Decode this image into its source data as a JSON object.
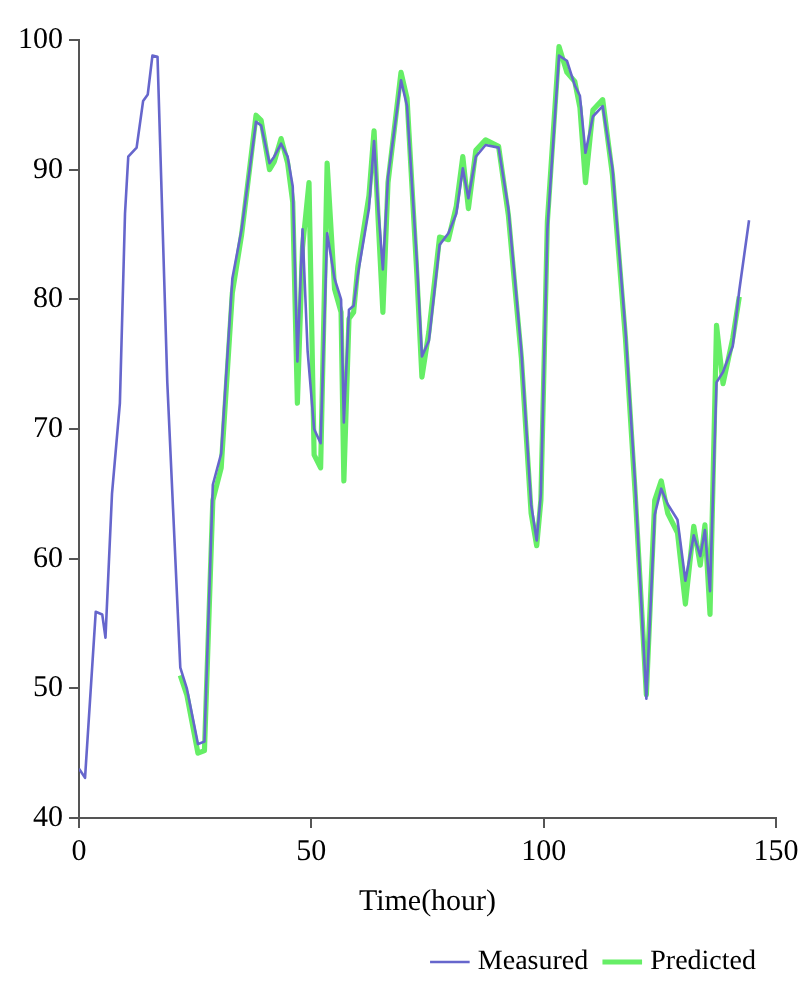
{
  "chart_data": {
    "type": "line",
    "xlabel": "Time(hour)",
    "xlim": [
      0,
      150
    ],
    "xticks": [
      0,
      50,
      100,
      150
    ],
    "ylim": [
      40,
      100
    ],
    "yticks": [
      40,
      50,
      60,
      70,
      80,
      90,
      100
    ],
    "grid": false,
    "legend": "bottom right",
    "marker": "none",
    "line_style": "solid",
    "series": [
      {
        "name": "Measured",
        "color": "#6666cc",
        "x": [
          0,
          1.3,
          3.6,
          5,
          5.7,
          7.1,
          8.8,
          9.9,
          10.6,
          12.4,
          13.8,
          14.8,
          15.8,
          16.9,
          19,
          21.8,
          23.2,
          25.6,
          27,
          28.8,
          30.6,
          33,
          35,
          38.1,
          39.2,
          41,
          42,
          43.5,
          44.9,
          46,
          47,
          48.1,
          49.2,
          50.6,
          52,
          53.4,
          55,
          56.4,
          57,
          58.1,
          59.1,
          60,
          62.4,
          63.5,
          64.4,
          65.4,
          66.5,
          69.3,
          70.6,
          72.7,
          73.8,
          75.3,
          77.6,
          79.5,
          81.2,
          82.6,
          83.8,
          85.4,
          87.5,
          90.3,
          92.4,
          95.2,
          97.3,
          98.5,
          99.4,
          100.8,
          103.3,
          105,
          106.7,
          107.8,
          109,
          110.6,
          112.7,
          114.8,
          117.6,
          119.7,
          122.1,
          123.9,
          125.3,
          126.7,
          128.8,
          130.5,
          132.3,
          133.7,
          134.7,
          135.8,
          137.2,
          138.6,
          140.7,
          142.1,
          144.2
        ],
        "values": [
          43.8,
          43.1,
          55.9,
          55.7,
          53.9,
          65,
          72,
          86.6,
          91,
          91.7,
          95.3,
          95.8,
          98.8,
          98.7,
          73.6,
          51.6,
          50,
          45.7,
          45.9,
          65.7,
          68.1,
          81.6,
          85.4,
          93.7,
          93.4,
          90.5,
          91,
          92,
          91,
          88.7,
          75.2,
          85.4,
          76,
          70,
          68.9,
          85.1,
          81.6,
          80,
          70.5,
          79.2,
          79.5,
          81.9,
          87,
          92.2,
          87,
          82.3,
          89.4,
          96.9,
          94.9,
          83,
          75.6,
          76.8,
          84.2,
          85.1,
          86.6,
          90.1,
          87.8,
          91,
          91.9,
          91.7,
          87,
          76,
          64.2,
          61.4,
          65,
          85.4,
          98.8,
          98.4,
          96.5,
          95.7,
          91.3,
          94.1,
          94.9,
          90.1,
          77.6,
          65.7,
          49.2,
          63.4,
          65.4,
          64.2,
          63,
          58.3,
          61.8,
          60.2,
          62.2,
          57.5,
          73.6,
          74.4,
          76.4,
          80.7,
          86.1
        ]
      },
      {
        "name": "Predicted",
        "color": "#66ee66",
        "x": [
          21.8,
          23.2,
          25.6,
          27,
          28.8,
          30.6,
          33,
          35,
          38.1,
          39.2,
          41,
          42,
          43.5,
          44.9,
          46,
          47,
          48.1,
          49.5,
          50.6,
          52,
          53.4,
          55,
          56.4,
          57,
          58.1,
          59.1,
          60,
          62.4,
          63.5,
          64.4,
          65.4,
          66.5,
          69.3,
          70.6,
          72.7,
          73.8,
          75.3,
          77.6,
          79.5,
          81.2,
          82.6,
          83.8,
          85.4,
          87.5,
          90.3,
          92.4,
          95.2,
          97.3,
          98.5,
          99.4,
          100.8,
          103.3,
          105,
          106.7,
          107.8,
          109,
          110.6,
          112.7,
          114.8,
          117.6,
          119.7,
          122.1,
          123.9,
          125.3,
          126.7,
          128.8,
          130.5,
          132.3,
          133.7,
          134.7,
          135.8,
          137.2,
          138.6,
          140.7,
          142.1
        ],
        "values": [
          51,
          49.5,
          45,
          45.2,
          64.5,
          67,
          80.5,
          85,
          94.2,
          93.8,
          90,
          90.6,
          92.4,
          90.5,
          87.5,
          72,
          84,
          89,
          68,
          67,
          90.5,
          80.8,
          79,
          66,
          78.5,
          79,
          82.5,
          88,
          93,
          86,
          79,
          89,
          97.5,
          95.5,
          82,
          74,
          77.5,
          84.8,
          84.6,
          87.2,
          91,
          87,
          91.5,
          92.3,
          91.8,
          86.5,
          75.5,
          63.5,
          61,
          64.5,
          86,
          99.5,
          97.5,
          96.8,
          94.8,
          89,
          94.6,
          95.4,
          89.6,
          77,
          65,
          49.5,
          64.5,
          66,
          63.5,
          62,
          56.5,
          62.5,
          59.5,
          62.6,
          55.7,
          78,
          73.5,
          77,
          80.2
        ]
      }
    ]
  }
}
